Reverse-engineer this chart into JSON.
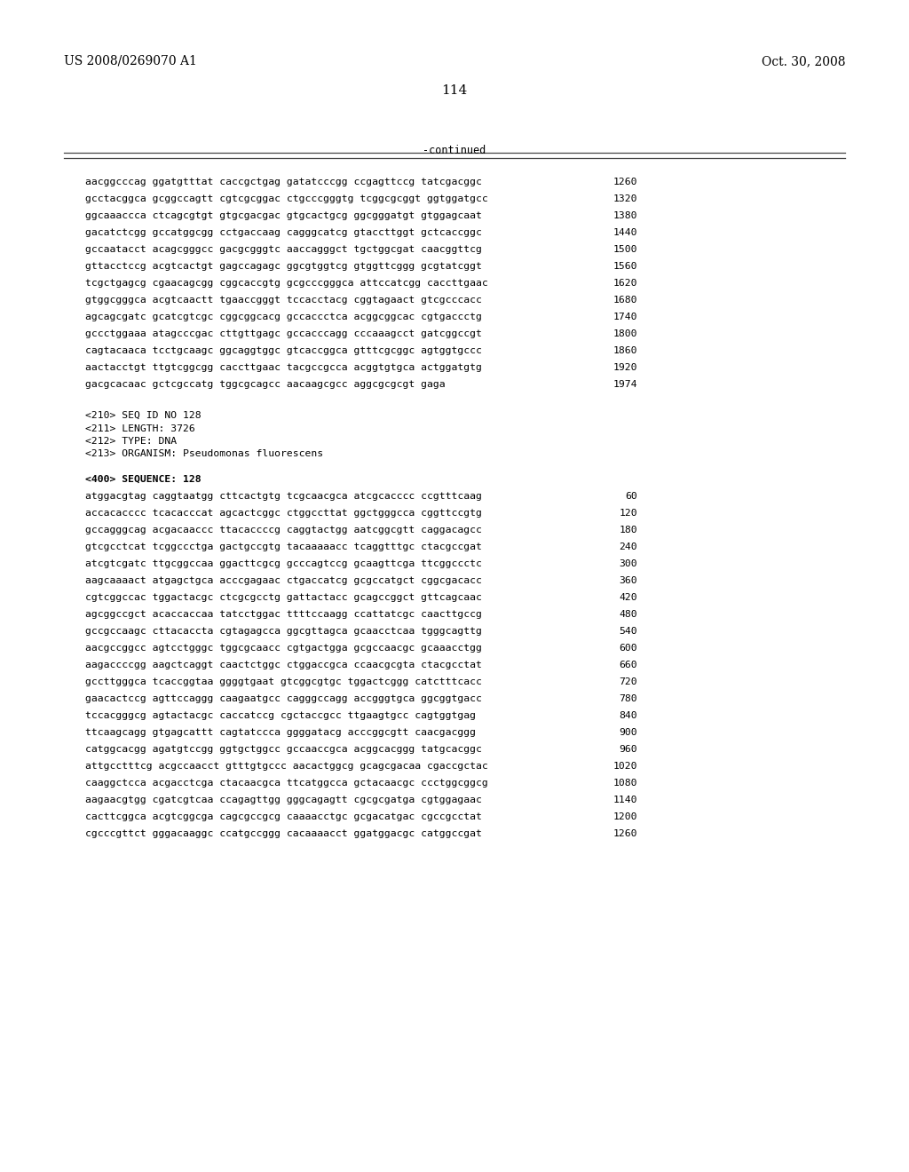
{
  "header_left": "US 2008/0269070 A1",
  "header_right": "Oct. 30, 2008",
  "page_number": "114",
  "continued_label": "-continued",
  "background_color": "#ffffff",
  "text_color": "#000000",
  "font_size_header": 10.0,
  "font_size_body": 8.2,
  "font_size_page": 11.0,
  "sequence_lines_top": [
    [
      "aacggcccag ggatgtttat caccgctgag gatatcccgg ccgagttccg tatcgacggc",
      "1260"
    ],
    [
      "gcctacggca gcggccagtt cgtcgcggac ctgcccgggtg tcggcgcggt ggtggatgcc",
      "1320"
    ],
    [
      "ggcaaaccca ctcagcgtgt gtgcgacgac gtgcactgcg ggcgggatgt gtggagcaat",
      "1380"
    ],
    [
      "gacatctcgg gccatggcgg cctgaccaag cagggcatcg gtaccttggt gctcaccggc",
      "1440"
    ],
    [
      "gccaatacct acagcgggcc gacgcgggtc aaccagggct tgctggcgat caacggttcg",
      "1500"
    ],
    [
      "gttacctccg acgtcactgt gagccagagc ggcgtggtcg gtggttcggg gcgtatcggt",
      "1560"
    ],
    [
      "tcgctgagcg cgaacagcgg cggcaccgtg gcgcccgggca attccatcgg caccttgaac",
      "1620"
    ],
    [
      "gtggcgggca acgtcaactt tgaaccgggt tccacctacg cggtagaact gtcgcccacc",
      "1680"
    ],
    [
      "agcagcgatc gcatcgtcgc cggcggcacg gccaccctca acggcggcac cgtgaccctg",
      "1740"
    ],
    [
      "gccctggaaa atagcccgac cttgttgagc gccacccagg cccaaagcct gatcggccgt",
      "1800"
    ],
    [
      "cagtacaaca tcctgcaagc ggcaggtggc gtcaccggca gtttcgcggc agtggtgccc",
      "1860"
    ],
    [
      "aactacctgt ttgtcggcgg caccttgaac tacgccgcca acggtgtgca actggatgtg",
      "1920"
    ],
    [
      "gacgcacaac gctcgccatg tggcgcagcc aacaagcgcc aggcgcgcgt gaga",
      "1974"
    ]
  ],
  "metadata_lines": [
    "<210> SEQ ID NO 128",
    "<211> LENGTH: 3726",
    "<212> TYPE: DNA",
    "<213> ORGANISM: Pseudomonas fluorescens"
  ],
  "sequence_label": "<400> SEQUENCE: 128",
  "sequence_lines_bottom": [
    [
      "atggacgtag caggtaatgg cttcactgtg tcgcaacgca atcgcacccc ccgtttcaag",
      "60"
    ],
    [
      "accacacccc tcacacccat agcactcggc ctggccttat ggctgggcca cggttccgtg",
      "120"
    ],
    [
      "gccagggcag acgacaaccc ttacaccccg caggtactgg aatcggcgtt caggacagcc",
      "180"
    ],
    [
      "gtcgcctcat tcggccctga gactgccgtg tacaaaaacc tcaggtttgc ctacgccgat",
      "240"
    ],
    [
      "atcgtcgatc ttgcggccaa ggacttcgcg gcccagtccg gcaagttcga ttcggccctc",
      "300"
    ],
    [
      "aagcaaaact atgagctgca acccgagaac ctgaccatcg gcgccatgct cggcgacacc",
      "360"
    ],
    [
      "cgtcggccac tggactacgc ctcgcgcctg gattactacc gcagccggct gttcagcaac",
      "420"
    ],
    [
      "agcggccgct acaccaccaa tatcctggac ttttccaagg ccattatcgc caacttgccg",
      "480"
    ],
    [
      "gccgccaagc cttacaccta cgtagagcca ggcgttagca gcaacctcaa tgggcagttg",
      "540"
    ],
    [
      "aacgccggcc agtcctgggc tggcgcaacc cgtgactgga gcgccaacgc gcaaacctgg",
      "600"
    ],
    [
      "aagaccccgg aagctcaggt caactctggc ctggaccgca ccaacgcgta ctacgcctat",
      "660"
    ],
    [
      "gccttgggca tcaccggtaa ggggtgaat gtcggcgtgc tggactcggg catctttcacc",
      "720"
    ],
    [
      "gaacactccg agttccaggg caagaatgcc cagggccagg accgggtgca ggcggtgacc",
      "780"
    ],
    [
      "tccacgggcg agtactacgc caccatccg cgctaccgcc ttgaagtgcc cagtggtgag",
      "840"
    ],
    [
      "ttcaagcagg gtgagcattt cagtatccca ggggatacg acccggcgtt caacgacggg",
      "900"
    ],
    [
      "catggcacgg agatgtccgg ggtgctggcc gccaaccgca acggcacggg tatgcacggc",
      "960"
    ],
    [
      "attgcctttcg acgccaacct gtttgtgccc aacactggcg gcagcgacaa cgaccgctac",
      "1020"
    ],
    [
      "caaggctcca acgacctcga ctacaacgca ttcatggcca gctacaacgc ccctggcggcg",
      "1080"
    ],
    [
      "aagaacgtgg cgatcgtcaa ccagagttgg gggcagagtt cgcgcgatga cgtggagaac",
      "1140"
    ],
    [
      "cacttcggca acgtcggcga cagcgccgcg caaaacctgc gcgacatgac cgccgcctat",
      "1200"
    ],
    [
      "cgcccgttct gggacaaggc ccatgccggg cacaaaacct ggatggacgc catggccgat",
      "1260"
    ]
  ]
}
